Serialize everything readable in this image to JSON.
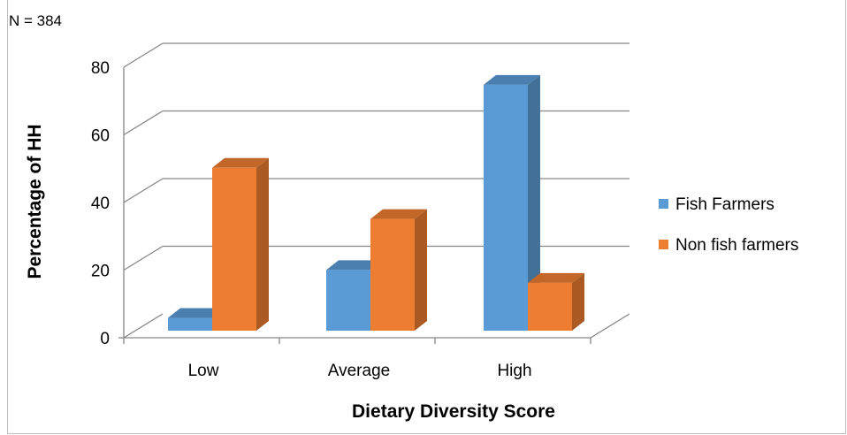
{
  "chart_data": {
    "type": "bar",
    "note": "N = 384",
    "xlabel": "Dietary Diversity Score",
    "ylabel": "Percentage of HH",
    "categories": [
      "Low",
      "Average",
      "High"
    ],
    "yticks": [
      "0",
      "20",
      "40",
      "60",
      "80"
    ],
    "ylim": [
      0,
      80
    ],
    "grid": true,
    "legend_position": "right",
    "series": [
      {
        "name": "Fish Farmers",
        "values": [
          4,
          19,
          77
        ],
        "color": "#5B9BD5"
      },
      {
        "name": "Non fish farmers",
        "values": [
          51,
          35,
          15
        ],
        "color": "#ED7D31"
      }
    ]
  }
}
